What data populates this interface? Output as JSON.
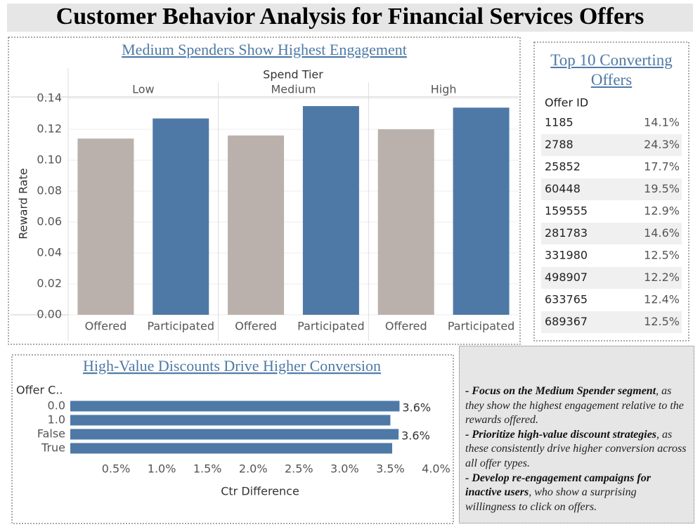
{
  "title": "Customer Behavior Analysis for Financial Services Offers",
  "chart_data": [
    {
      "type": "grouped_bar",
      "title": "Medium Spenders Show Highest Engagement",
      "group_label": "Spend Tier",
      "y_label": "Reward Rate",
      "categories": [
        "Low",
        "Medium",
        "High"
      ],
      "series": [
        {
          "name": "Offered",
          "color": "#bab0ac",
          "values": [
            0.114,
            0.116,
            0.12
          ]
        },
        {
          "name": "Participated",
          "color": "#4e79a7",
          "values": [
            0.127,
            0.135,
            0.134
          ]
        }
      ],
      "ylim": [
        0,
        0.14
      ],
      "yticks": [
        {
          "value": 0,
          "label": "0.00"
        },
        {
          "value": 0.02,
          "label": "0.02"
        },
        {
          "value": 0.04,
          "label": "0.04"
        },
        {
          "value": 0.06,
          "label": "0.06"
        },
        {
          "value": 0.08,
          "label": "0.08"
        },
        {
          "value": 0.1,
          "label": "0.10"
        },
        {
          "value": 0.12,
          "label": "0.12"
        },
        {
          "value": 0.14,
          "label": "0.14"
        }
      ],
      "grid": true
    },
    {
      "type": "hbar",
      "title": "High-Value Discounts Drive Higher Conversion",
      "category_label": "Offer C..",
      "x_label": "Ctr Difference",
      "categories": [
        "0.0",
        "1.0",
        "False",
        "True"
      ],
      "values": [
        3.6,
        3.5,
        3.59,
        3.52
      ],
      "value_labels": [
        "3.6%",
        null,
        "3.6%",
        null
      ],
      "color": "#4e79a7",
      "xlim": [
        0,
        4.15
      ],
      "xticks": [
        {
          "value": 0.5,
          "label": "0.5%"
        },
        {
          "value": 1.0,
          "label": "1.0%"
        },
        {
          "value": 1.5,
          "label": "1.5%"
        },
        {
          "value": 2.0,
          "label": "2.0%"
        },
        {
          "value": 2.5,
          "label": "2.5%"
        },
        {
          "value": 3.0,
          "label": "3.0%"
        },
        {
          "value": 3.5,
          "label": "3.5%"
        },
        {
          "value": 4.0,
          "label": "4.0%"
        }
      ],
      "grid": false
    }
  ],
  "table": {
    "title": "Top 10 Converting Offers",
    "header": "Offer ID",
    "rows": [
      [
        "1185",
        "14.1%"
      ],
      [
        "2788",
        "24.3%"
      ],
      [
        "25852",
        "17.7%"
      ],
      [
        "60448",
        "19.5%"
      ],
      [
        "159555",
        "12.9%"
      ],
      [
        "281783",
        "14.6%"
      ],
      [
        "331980",
        "12.5%"
      ],
      [
        "498907",
        "12.2%"
      ],
      [
        "633765",
        "12.4%"
      ],
      [
        "689367",
        "12.5%"
      ]
    ]
  },
  "notes": [
    {
      "bold": "- Focus on the Medium Spender segment",
      "text": ", as they show the highest engagement relative to the rewards offered."
    },
    {
      "bold": "- Prioritize high-value discount strategies",
      "text": ", as these consistently drive higher conversion across all offer types."
    },
    {
      "bold": "- Develop re-engagement campaigns for inactive users",
      "text": ", who show a surprising willingness to click on offers."
    }
  ]
}
